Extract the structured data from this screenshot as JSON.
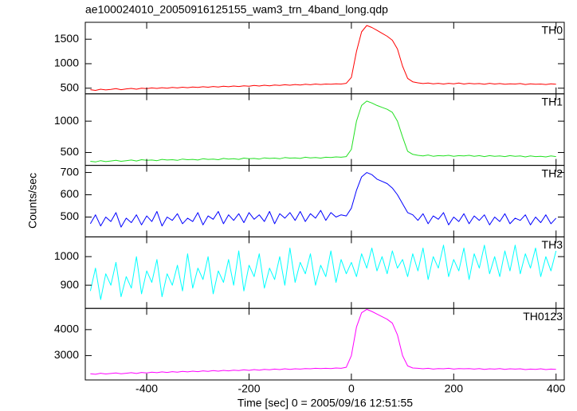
{
  "chart_data": {
    "type": "line",
    "title": "ae100024010_20050916125155_wam3_trn_4band_long.qdp",
    "xlabel": "Time [sec] 0 = 2005/09/16 12:51:55",
    "ylabel": "Counts/sec",
    "xlim": [
      -520,
      416
    ],
    "xticks": [
      -400,
      -200,
      0,
      200,
      400
    ],
    "x": [
      -510,
      -500,
      -490,
      -480,
      -470,
      -460,
      -450,
      -440,
      -430,
      -420,
      -410,
      -400,
      -390,
      -380,
      -370,
      -360,
      -350,
      -340,
      -330,
      -320,
      -310,
      -300,
      -290,
      -280,
      -270,
      -260,
      -250,
      -240,
      -230,
      -220,
      -210,
      -200,
      -190,
      -180,
      -170,
      -160,
      -150,
      -140,
      -130,
      -120,
      -110,
      -100,
      -90,
      -80,
      -70,
      -60,
      -50,
      -40,
      -30,
      -20,
      -10,
      0,
      10,
      20,
      30,
      40,
      50,
      60,
      70,
      80,
      90,
      100,
      110,
      120,
      130,
      140,
      150,
      160,
      170,
      180,
      190,
      200,
      210,
      220,
      230,
      240,
      250,
      260,
      270,
      280,
      290,
      300,
      310,
      320,
      330,
      340,
      350,
      360,
      370,
      380,
      390,
      400
    ],
    "series": [
      {
        "name": "TH0",
        "color": "#ff0000",
        "ylim": [
          385,
          1845
        ],
        "yticks": [
          500,
          1000,
          1500
        ],
        "values": [
          470,
          455,
          480,
          465,
          475,
          490,
          470,
          485,
          495,
          480,
          500,
          490,
          505,
          495,
          510,
          500,
          515,
          505,
          520,
          510,
          525,
          515,
          530,
          520,
          535,
          525,
          540,
          530,
          545,
          535,
          550,
          540,
          555,
          545,
          560,
          550,
          565,
          555,
          570,
          560,
          575,
          565,
          580,
          570,
          585,
          575,
          585,
          580,
          590,
          585,
          600,
          720,
          1250,
          1650,
          1780,
          1740,
          1680,
          1620,
          1560,
          1480,
          1300,
          950,
          700,
          630,
          610,
          595,
          605,
          590,
          600,
          585,
          600,
          590,
          605,
          585,
          600,
          590,
          595,
          580,
          600,
          585,
          595,
          580,
          590,
          585,
          595,
          575,
          590,
          580,
          585,
          575,
          590,
          580
        ]
      },
      {
        "name": "TH1",
        "color": "#22e022",
        "ylim": [
          295,
          1436
        ],
        "yticks": [
          500,
          1000
        ],
        "values": [
          360,
          350,
          370,
          355,
          365,
          375,
          360,
          370,
          380,
          365,
          385,
          375,
          380,
          370,
          390,
          380,
          385,
          375,
          395,
          385,
          390,
          380,
          400,
          390,
          395,
          385,
          405,
          395,
          400,
          390,
          410,
          400,
          405,
          395,
          415,
          405,
          410,
          400,
          420,
          410,
          415,
          405,
          425,
          415,
          420,
          410,
          425,
          420,
          430,
          425,
          435,
          550,
          1000,
          1250,
          1320,
          1290,
          1250,
          1220,
          1190,
          1140,
          1000,
          750,
          520,
          470,
          455,
          445,
          460,
          440,
          450,
          445,
          455,
          440,
          450,
          445,
          455,
          440,
          450,
          435,
          450,
          440,
          445,
          435,
          450,
          440,
          445,
          430,
          445,
          435,
          440,
          430,
          445,
          435
        ]
      },
      {
        "name": "TH2",
        "color": "#0000ff",
        "ylim": [
          411,
          732
        ],
        "yticks": [
          500,
          600,
          700
        ],
        "values": [
          470,
          510,
          460,
          500,
          480,
          520,
          455,
          495,
          475,
          510,
          465,
          505,
          480,
          525,
          460,
          500,
          485,
          515,
          470,
          495,
          480,
          520,
          465,
          505,
          490,
          525,
          470,
          510,
          485,
          515,
          475,
          520,
          490,
          510,
          480,
          525,
          470,
          515,
          495,
          520,
          485,
          525,
          480,
          515,
          495,
          530,
          485,
          520,
          500,
          510,
          505,
          540,
          620,
          680,
          700,
          690,
          670,
          660,
          650,
          630,
          600,
          560,
          520,
          510,
          485,
          515,
          470,
          505,
          490,
          520,
          465,
          500,
          480,
          515,
          470,
          505,
          485,
          510,
          465,
          500,
          480,
          515,
          470,
          495,
          485,
          510,
          465,
          500,
          475,
          510,
          470,
          495
        ]
      },
      {
        "name": "TH3",
        "color": "#00ffff",
        "ylim": [
          819,
          1069
        ],
        "yticks": [
          900,
          1000
        ],
        "values": [
          880,
          960,
          850,
          940,
          900,
          980,
          860,
          930,
          890,
          1000,
          870,
          950,
          910,
          990,
          860,
          940,
          900,
          970,
          880,
          1010,
          890,
          960,
          920,
          1000,
          870,
          950,
          910,
          990,
          900,
          1020,
          880,
          970,
          930,
          1010,
          890,
          960,
          920,
          1000,
          900,
          1030,
          910,
          980,
          940,
          1010,
          900,
          970,
          930,
          1020,
          910,
          990,
          940,
          980,
          930,
          1010,
          960,
          1030,
          950,
          1000,
          940,
          1020,
          960,
          990,
          930,
          1010,
          950,
          1030,
          920,
          1000,
          960,
          1040,
          930,
          990,
          950,
          1030,
          920,
          1010,
          960,
          1040,
          940,
          1000,
          930,
          1020,
          950,
          1040,
          940,
          1010,
          960,
          1030,
          930,
          1000,
          950,
          1020
        ]
      },
      {
        "name": "TH0123",
        "color": "#ff00ff",
        "ylim": [
          2061,
          4818
        ],
        "yticks": [
          3000,
          4000
        ],
        "values": [
          2300,
          2280,
          2320,
          2290,
          2310,
          2330,
          2300,
          2320,
          2340,
          2310,
          2350,
          2330,
          2360,
          2340,
          2370,
          2350,
          2380,
          2360,
          2390,
          2370,
          2400,
          2380,
          2410,
          2390,
          2420,
          2400,
          2430,
          2410,
          2440,
          2420,
          2450,
          2430,
          2460,
          2440,
          2470,
          2450,
          2480,
          2460,
          2490,
          2470,
          2490,
          2480,
          2500,
          2490,
          2510,
          2500,
          2510,
          2500,
          2520,
          2510,
          2550,
          3000,
          4100,
          4650,
          4780,
          4700,
          4600,
          4500,
          4400,
          4250,
          3800,
          3000,
          2600,
          2520,
          2510,
          2490,
          2510,
          2480,
          2500,
          2490,
          2510,
          2480,
          2500,
          2490,
          2500,
          2480,
          2500,
          2470,
          2490,
          2480,
          2500,
          2470,
          2490,
          2480,
          2490,
          2460,
          2480,
          2470,
          2490,
          2460,
          2480,
          2470
        ]
      }
    ]
  }
}
